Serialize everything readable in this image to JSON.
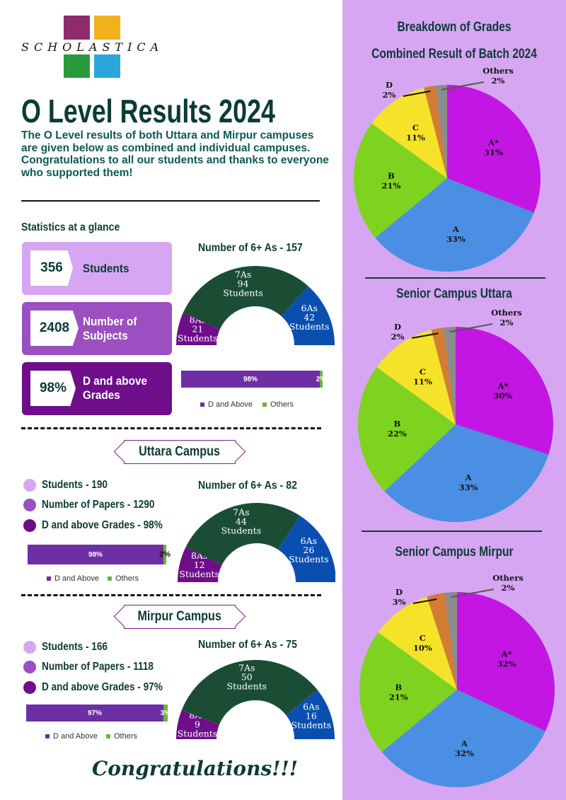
{
  "logo": {
    "text": "SCHOLASTICA"
  },
  "header": {
    "title": "O Level Results 2024",
    "intro": "The O Level results of both Uttara and Mirpur campuses are given below as combined and individual campuses. Congratulations to all our students and thanks to everyone who supported them!"
  },
  "stats": {
    "heading": "Statistics at a glance",
    "cards": [
      {
        "value": "356",
        "label": "Students",
        "color": "#d6a6f2"
      },
      {
        "value": "2408",
        "label": "Number of Subjects",
        "color": "#9b4fc0"
      },
      {
        "value": "98%",
        "label": "D and above Grades",
        "color": "#6e0e8a"
      }
    ]
  },
  "combined_six_as": {
    "title": "Number of 6+ As - 157",
    "segments": [
      {
        "grade": "8As",
        "count": "21",
        "unit": "Students",
        "value": 21,
        "color": "#6e0e8a"
      },
      {
        "grade": "7As",
        "count": "94",
        "unit": "Students",
        "value": 94,
        "color": "#1b4d35"
      },
      {
        "grade": "6As",
        "count": "42",
        "unit": "Students",
        "value": 42,
        "color": "#0a4fb0"
      }
    ]
  },
  "combined_bar": {
    "pass_label": "98%",
    "other_label": "2%",
    "pass": 98,
    "other": 2
  },
  "legend": {
    "pass": "D and Above",
    "other": "Others",
    "pass_color": "#6e2ea6",
    "other_color": "#6db33f"
  },
  "uttara": {
    "banner": "Uttara Campus",
    "bullets": [
      "Students - 190",
      "Number of Papers - 1290",
      "D and above Grades - 98%"
    ],
    "six_as": {
      "title": "Number of 6+ As - 82",
      "segments": [
        {
          "grade": "8As",
          "count": "12",
          "unit": "Students",
          "value": 12
        },
        {
          "grade": "7As",
          "count": "44",
          "unit": "Students",
          "value": 44
        },
        {
          "grade": "6As",
          "count": "26",
          "unit": "Students",
          "value": 26
        }
      ]
    },
    "bar": {
      "pass_label": "98%",
      "other_label": "2%",
      "pass": 98,
      "other": 2
    }
  },
  "mirpur": {
    "banner": "Mirpur Campus",
    "bullets": [
      "Students - 166",
      "Number of Papers - 1118",
      "D and above Grades - 97%"
    ],
    "six_as": {
      "title": "Number of 6+ As - 75",
      "segments": [
        {
          "grade": "8As",
          "count": "9",
          "unit": "Students",
          "value": 9
        },
        {
          "grade": "7As",
          "count": "50",
          "unit": "Students",
          "value": 50
        },
        {
          "grade": "6As",
          "count": "16",
          "unit": "Students",
          "value": 16
        }
      ]
    },
    "bar": {
      "pass_label": "97%",
      "other_label": "3%",
      "pass": 97,
      "other": 3
    }
  },
  "footer": {
    "congrats": "Congratulations!!!"
  },
  "breakdown": {
    "heading": "Breakdown of Grades"
  },
  "chart_data": [
    {
      "type": "pie",
      "title": "Combined Result of Batch 2024",
      "labels": [
        "A*",
        "A",
        "B",
        "C",
        "D",
        "Others"
      ],
      "values": [
        31,
        33,
        21,
        11,
        2,
        2
      ],
      "colors": [
        "#c316e3",
        "#4a8fe3",
        "#7ed321",
        "#f5e32a",
        "#d27c34",
        "#8c8c8c"
      ]
    },
    {
      "type": "pie",
      "title": "Senior Campus Uttara",
      "labels": [
        "A*",
        "A",
        "B",
        "C",
        "D",
        "Others"
      ],
      "values": [
        30,
        33,
        22,
        11,
        2,
        2
      ],
      "colors": [
        "#c316e3",
        "#4a8fe3",
        "#7ed321",
        "#f5e32a",
        "#d27c34",
        "#8c8c8c"
      ]
    },
    {
      "type": "pie",
      "title": "Senior Campus Mirpur",
      "labels": [
        "A*",
        "A",
        "B",
        "C",
        "D",
        "Others"
      ],
      "values": [
        32,
        32,
        21,
        10,
        3,
        2
      ],
      "colors": [
        "#c316e3",
        "#4a8fe3",
        "#7ed321",
        "#f5e32a",
        "#d27c34",
        "#8c8c8c"
      ]
    }
  ]
}
